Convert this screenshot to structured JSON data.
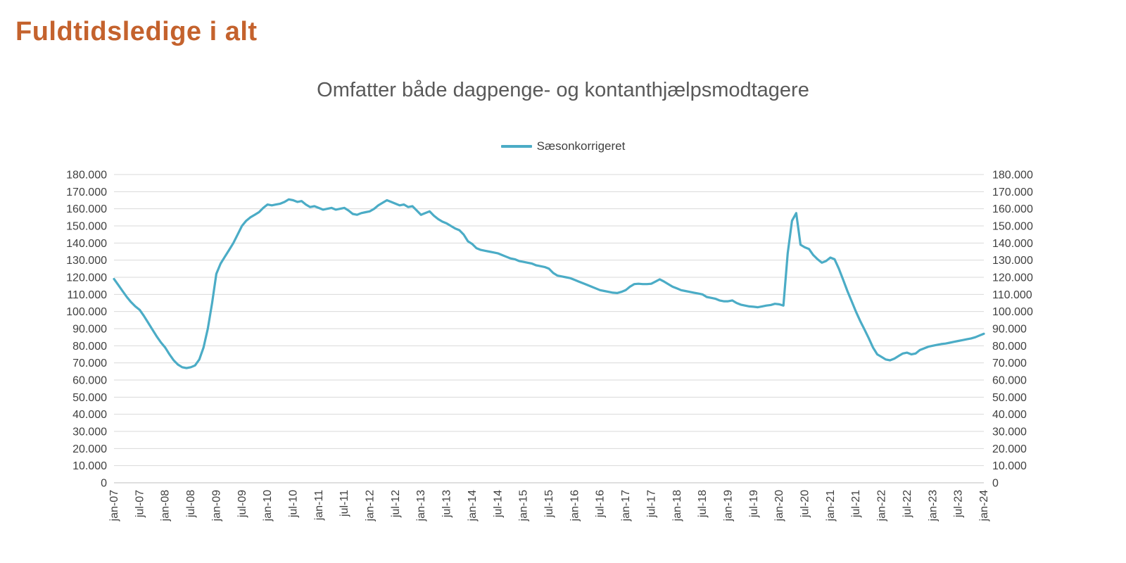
{
  "page": {
    "title": "Fuldtidsledige i alt",
    "title_color": "#C4622D",
    "background": "#FFFFFF"
  },
  "chart": {
    "subtitle": "Omfatter både dagpenge- og kontanthjælpsmodtagere",
    "legend": {
      "label": "Sæsonkorrigeret"
    }
  },
  "chart_data": {
    "type": "line",
    "title": "Omfatter både dagpenge- og kontanthjælpsmodtagere",
    "grid": true,
    "legend_position": "top-center",
    "ylim": [
      0,
      180000
    ],
    "y_tick_step": 10000,
    "y_tick_labels": [
      "0",
      "10.000",
      "20.000",
      "30.000",
      "40.000",
      "50.000",
      "60.000",
      "70.000",
      "80.000",
      "90.000",
      "100.000",
      "110.000",
      "120.000",
      "130.000",
      "140.000",
      "150.000",
      "160.000",
      "170.000",
      "180.000"
    ],
    "x_tick_every": 6,
    "x_tick_labels": [
      "jan-07",
      "jul-07",
      "jan-08",
      "jul-08",
      "jan-09",
      "jul-09",
      "jan-10",
      "jul-10",
      "jan-11",
      "jul-11",
      "jan-12",
      "jul-12",
      "jan-13",
      "jul-13",
      "jan-14",
      "jul-14",
      "jan-15",
      "jul-15",
      "jan-16",
      "jul-16",
      "jan-17",
      "jul-17",
      "jan-18",
      "jul-18",
      "jan-19",
      "jul-19",
      "jan-20",
      "jul-20",
      "jan-21",
      "jul-21",
      "jan-22",
      "jul-22",
      "jan-23",
      "jul-23",
      "jan-24"
    ],
    "x_frequency": "monthly",
    "x_range": [
      "jan-07",
      "jan-24"
    ],
    "series": [
      {
        "name": "Sæsonkorrigeret",
        "color": "#4BACC6",
        "values": [
          119000,
          115500,
          112000,
          108500,
          105500,
          103000,
          101000,
          97500,
          93500,
          89500,
          85500,
          82000,
          79000,
          75000,
          71500,
          69000,
          67500,
          67000,
          67500,
          68500,
          72000,
          79000,
          90000,
          105000,
          122000,
          128000,
          132000,
          136000,
          140000,
          145000,
          150000,
          153000,
          155000,
          156500,
          158000,
          160500,
          162500,
          162000,
          162500,
          163000,
          164000,
          165500,
          165000,
          164000,
          164500,
          162500,
          161000,
          161500,
          160500,
          159500,
          160000,
          160500,
          159500,
          160000,
          160500,
          159000,
          157000,
          156500,
          157500,
          158000,
          158500,
          160000,
          162000,
          163500,
          165000,
          164000,
          163000,
          162000,
          162500,
          161000,
          161500,
          159000,
          156500,
          157500,
          158500,
          156000,
          154000,
          152500,
          151500,
          150000,
          148500,
          147500,
          145000,
          141000,
          139500,
          137000,
          136000,
          135500,
          135000,
          134500,
          134000,
          133000,
          132000,
          131000,
          130500,
          129500,
          129000,
          128500,
          128000,
          127000,
          126500,
          126000,
          125000,
          122500,
          121000,
          120500,
          120000,
          119500,
          118500,
          117500,
          116500,
          115500,
          114500,
          113500,
          112500,
          112000,
          111500,
          111000,
          110800,
          111500,
          112500,
          114500,
          116000,
          116200,
          116000,
          116000,
          116200,
          117500,
          118800,
          117500,
          116000,
          114500,
          113500,
          112500,
          112000,
          111500,
          111000,
          110500,
          110000,
          108500,
          108000,
          107500,
          106500,
          106000,
          106000,
          106500,
          105000,
          104000,
          103500,
          103000,
          102800,
          102500,
          103000,
          103500,
          103800,
          104500,
          104200,
          103500,
          134000,
          153000,
          157500,
          139000,
          137500,
          136500,
          133000,
          130500,
          128500,
          129500,
          131500,
          130500,
          125000,
          118500,
          112000,
          106000,
          100000,
          94500,
          89500,
          84500,
          79000,
          75000,
          73500,
          72000,
          71500,
          72500,
          74000,
          75500,
          76000,
          75000,
          75500,
          77500,
          78500,
          79500,
          80000,
          80500,
          81000,
          81300,
          81800,
          82300,
          82800,
          83300,
          83800,
          84300,
          85000,
          86000,
          87000
        ]
      }
    ]
  }
}
